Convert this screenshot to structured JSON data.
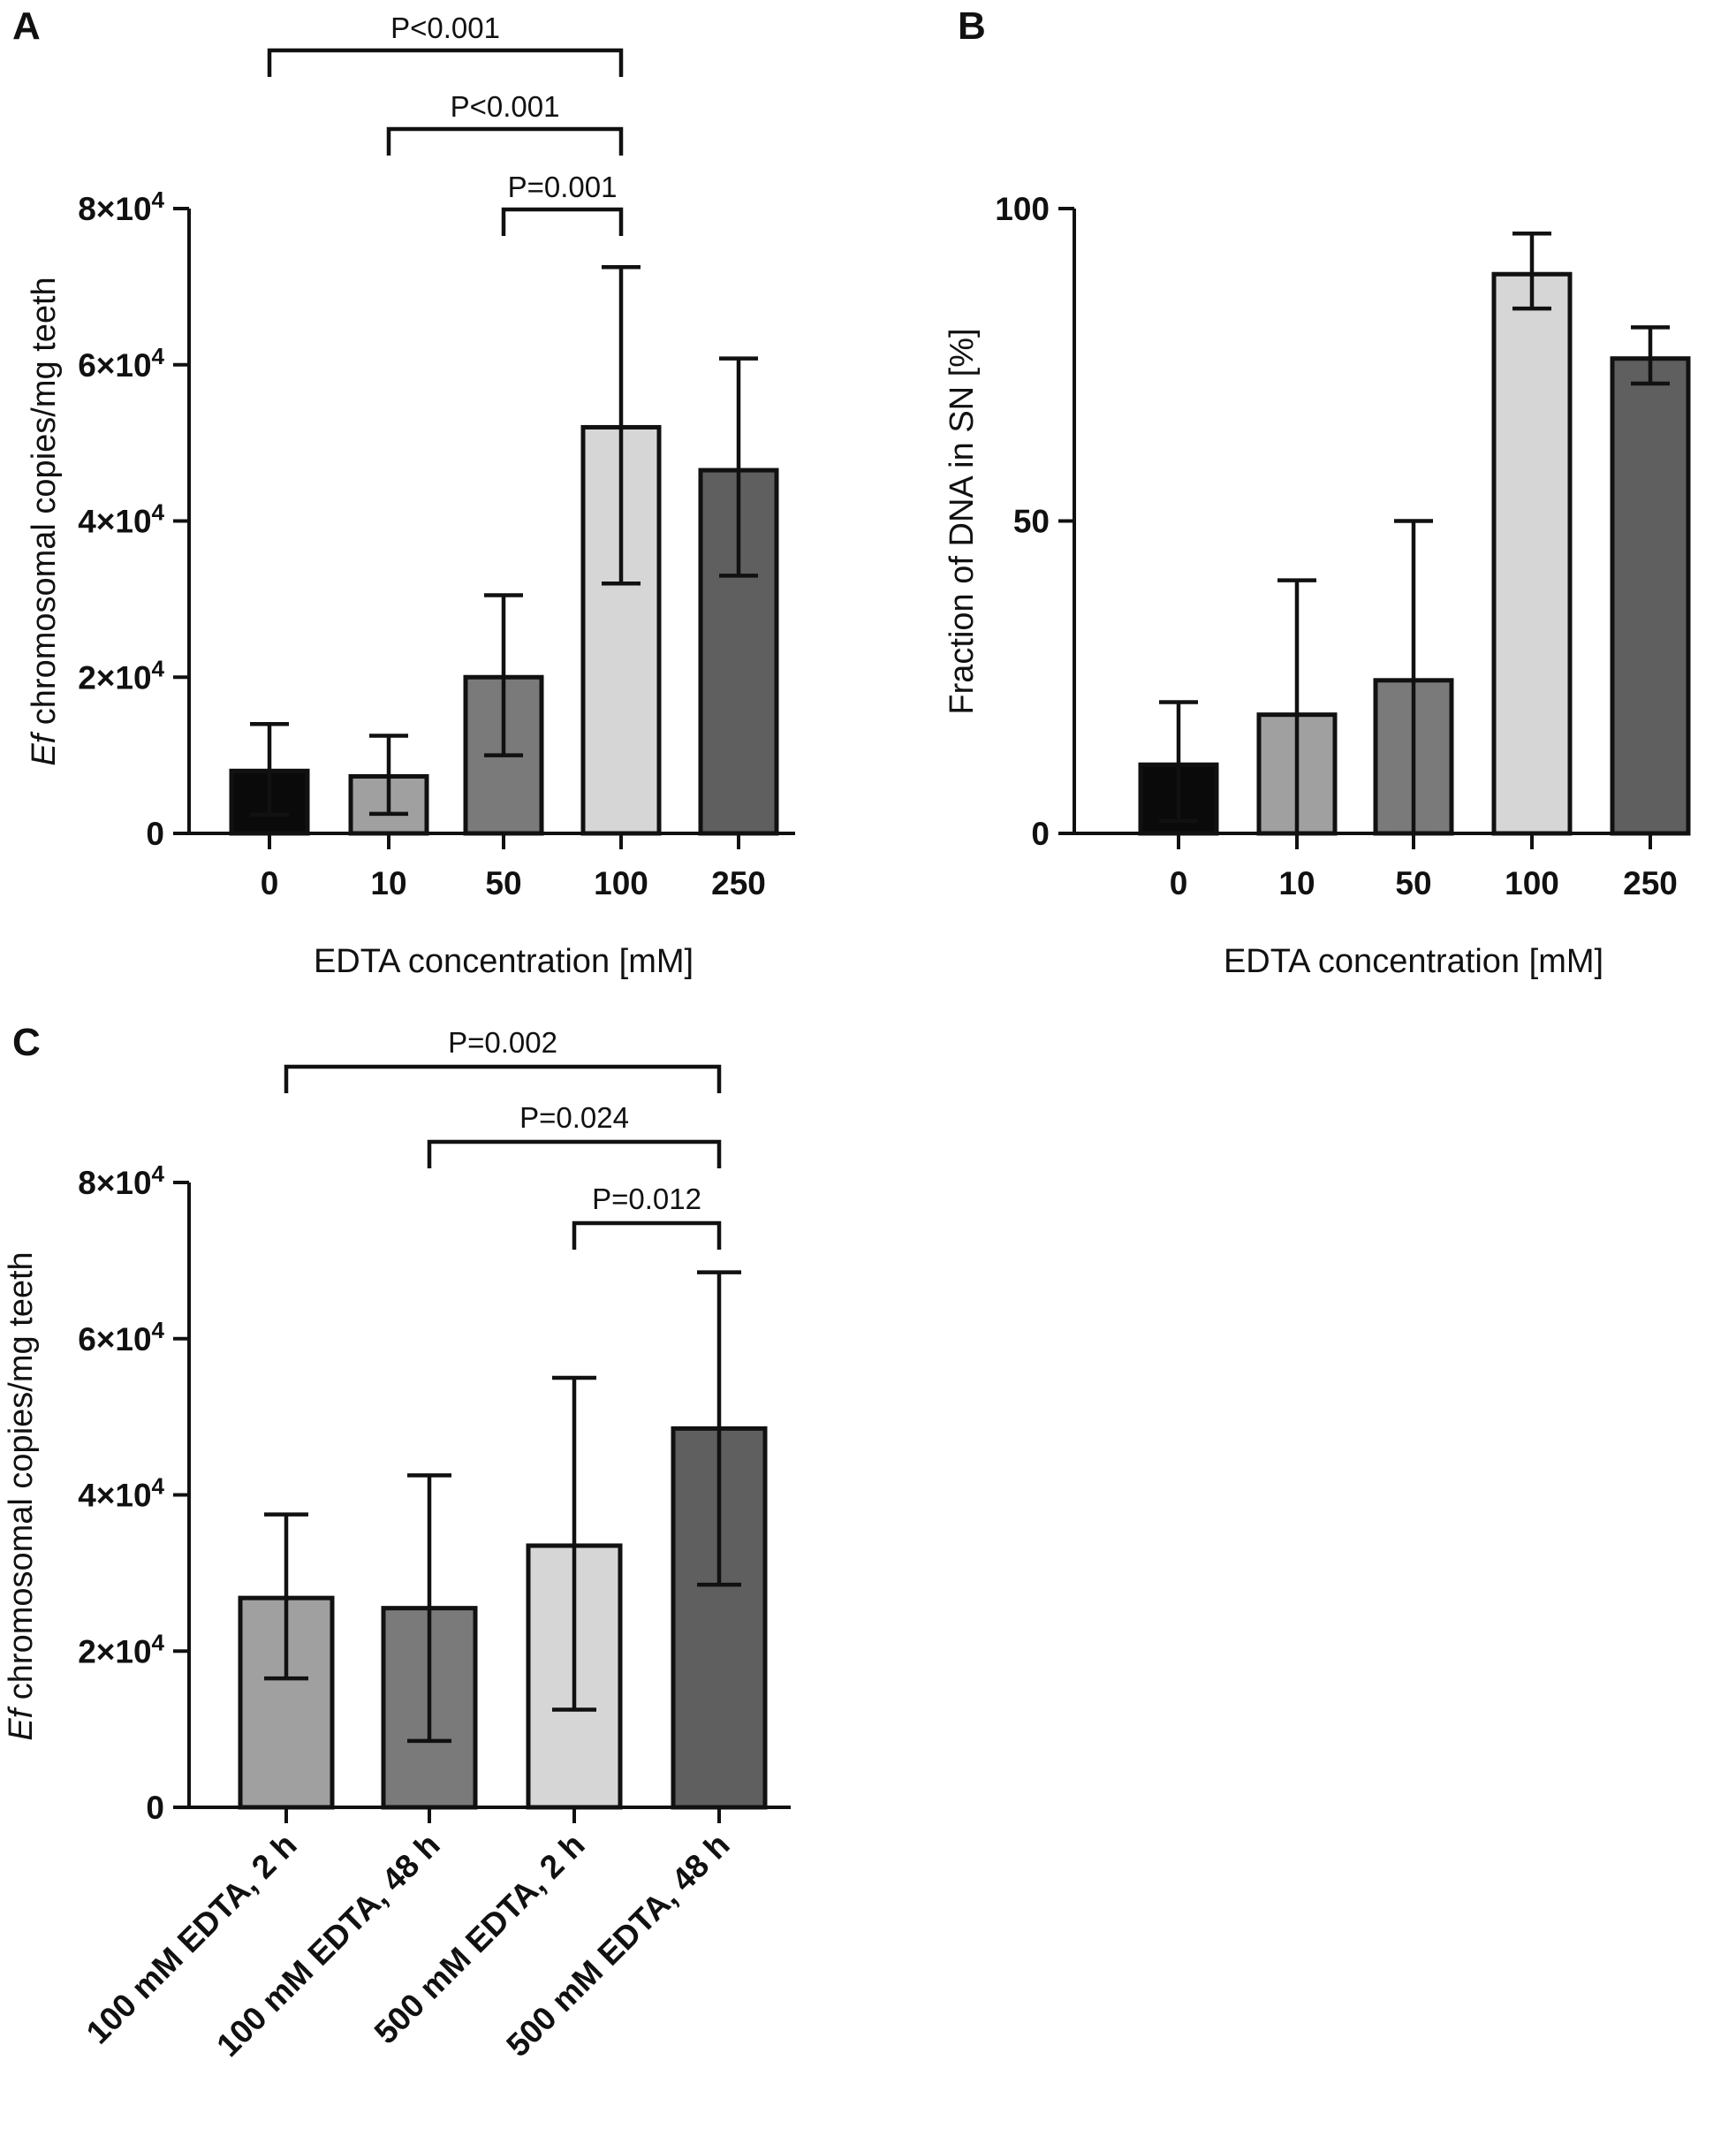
{
  "chart_data": [
    {
      "panel": "A",
      "type": "bar",
      "categories": [
        "0",
        "10",
        "50",
        "100",
        "250"
      ],
      "values": [
        8000,
        7300,
        20000,
        52000,
        46500
      ],
      "errors": [
        [
          2400,
          14000
        ],
        [
          2500,
          12500
        ],
        [
          10000,
          30500
        ],
        [
          32000,
          72500
        ],
        [
          33000,
          60800
        ]
      ],
      "colors": [
        "#0a0a0a",
        "#a0a0a0",
        "#7a7a7a",
        "#d6d6d6",
        "#5f5f5f"
      ],
      "xlabel": "EDTA concentration [mM]",
      "ylabel_italic": "Ef",
      "ylabel": " chromosomal copies/mg teeth",
      "ylim": [
        0,
        80000
      ],
      "yticks": [
        {
          "value": 0,
          "base": "0",
          "exp": ""
        },
        {
          "value": 20000,
          "base": "2×10",
          "exp": "4"
        },
        {
          "value": 40000,
          "base": "4×10",
          "exp": "4"
        },
        {
          "value": 60000,
          "base": "6×10",
          "exp": "4"
        },
        {
          "value": 80000,
          "base": "8×10",
          "exp": "4"
        }
      ],
      "annotations": [
        {
          "from": 0,
          "to": 3,
          "label": "P<0.001"
        },
        {
          "from": 1,
          "to": 3,
          "label": "P<0.001"
        },
        {
          "from": 2,
          "to": 3,
          "label": "P=0.001"
        }
      ]
    },
    {
      "panel": "B",
      "type": "bar",
      "categories": [
        "0",
        "10",
        "50",
        "100",
        "250"
      ],
      "values": [
        11,
        19,
        24.5,
        89.5,
        76
      ],
      "errors": [
        [
          2,
          21
        ],
        [
          0,
          40.5
        ],
        [
          0,
          50
        ],
        [
          84,
          96
        ],
        [
          72,
          81
        ]
      ],
      "colors": [
        "#0a0a0a",
        "#a0a0a0",
        "#7a7a7a",
        "#d6d6d6",
        "#5f5f5f"
      ],
      "xlabel": "EDTA concentration [mM]",
      "ylabel": "Fraction of DNA in SN [%]",
      "ylim": [
        0,
        100
      ],
      "yticks": [
        {
          "value": 0,
          "base": "0",
          "exp": ""
        },
        {
          "value": 50,
          "base": "50",
          "exp": ""
        },
        {
          "value": 100,
          "base": "100",
          "exp": ""
        }
      ],
      "annotations": []
    },
    {
      "panel": "C",
      "type": "bar",
      "categories": [
        "100 mM EDTA, 2 h",
        "100 mM EDTA, 48 h",
        "500 mM EDTA, 2 h",
        "500 mM EDTA, 48 h"
      ],
      "values": [
        26800,
        25500,
        33500,
        48500
      ],
      "errors": [
        [
          16500,
          37500
        ],
        [
          8500,
          42500
        ],
        [
          12500,
          55000
        ],
        [
          28500,
          68500
        ]
      ],
      "colors": [
        "#a0a0a0",
        "#7a7a7a",
        "#d6d6d6",
        "#5f5f5f"
      ],
      "xlabel": "",
      "ylabel_italic": "Ef",
      "ylabel": " chromosomal copies/mg teeth",
      "ylim": [
        0,
        80000
      ],
      "yticks": [
        {
          "value": 0,
          "base": "0",
          "exp": ""
        },
        {
          "value": 20000,
          "base": "2×10",
          "exp": "4"
        },
        {
          "value": 40000,
          "base": "4×10",
          "exp": "4"
        },
        {
          "value": 60000,
          "base": "6×10",
          "exp": "4"
        },
        {
          "value": 80000,
          "base": "8×10",
          "exp": "4"
        }
      ],
      "annotations": [
        {
          "from": 0,
          "to": 3,
          "label": "P=0.002"
        },
        {
          "from": 1,
          "to": 3,
          "label": "P=0.024"
        },
        {
          "from": 2,
          "to": 3,
          "label": "P=0.012"
        }
      ]
    }
  ]
}
